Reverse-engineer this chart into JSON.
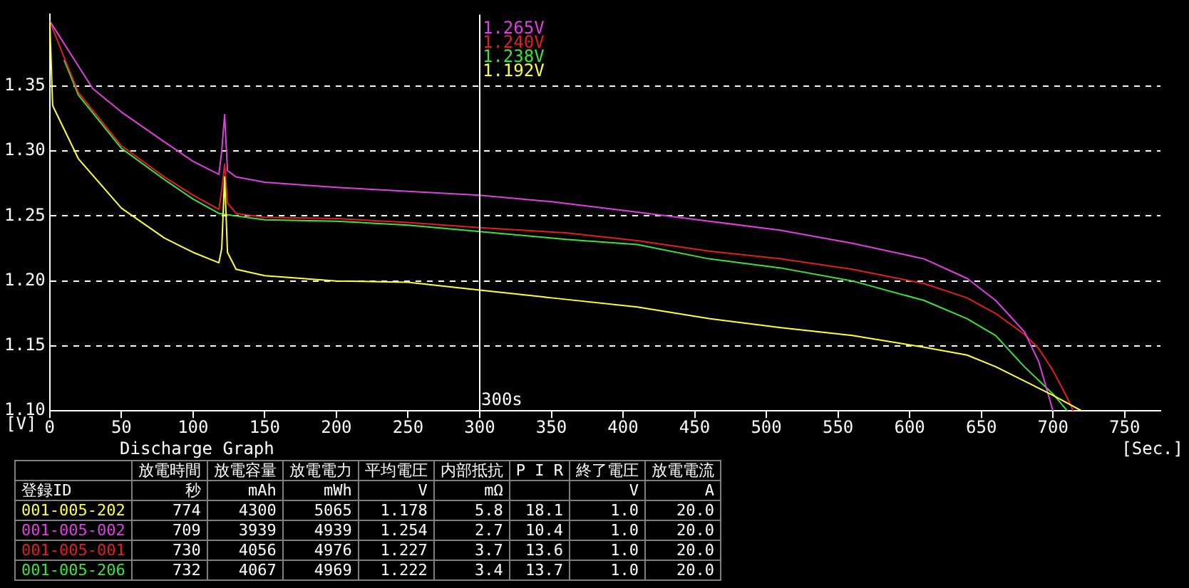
{
  "chart_data": [
    {
      "type": "line",
      "title": "Discharge Graph",
      "xlabel": "[Sec.]",
      "ylabel": "[V]",
      "xlim": [
        0,
        775
      ],
      "ylim": [
        1.1,
        1.405
      ],
      "xticks": [
        0,
        50,
        100,
        150,
        200,
        250,
        300,
        350,
        400,
        450,
        500,
        550,
        600,
        650,
        700,
        750
      ],
      "yticks": [
        {
          "value": 1.1,
          "label": "1.10"
        },
        {
          "value": 1.15,
          "label": "1.15"
        },
        {
          "value": 1.2,
          "label": "1.20"
        },
        {
          "value": 1.25,
          "label": "1.25"
        },
        {
          "value": 1.3,
          "label": "1.30"
        },
        {
          "value": 1.35,
          "label": "1.35"
        }
      ],
      "grid": "y",
      "legend": false,
      "marker": "none",
      "line_style": "solid",
      "ref_lines": [
        {
          "axis": "x",
          "value": 300,
          "label": "300s",
          "color": "#ffffff"
        }
      ],
      "annotations": [
        "1.265V",
        "1.240V",
        "1.238V",
        "1.192V"
      ],
      "series": [
        {
          "name": "001-005-202",
          "color": "#ffff40",
          "x": [
            0,
            2,
            20,
            50,
            80,
            100,
            118,
            120,
            122,
            124,
            130,
            150,
            200,
            250,
            300,
            350,
            410,
            460,
            510,
            560,
            610,
            640,
            660,
            680,
            700,
            720
          ],
          "values": [
            1.4,
            1.335,
            1.294,
            1.256,
            1.233,
            1.222,
            1.214,
            1.225,
            1.28,
            1.222,
            1.209,
            1.204,
            1.2,
            1.199,
            1.193,
            1.187,
            1.18,
            1.171,
            1.164,
            1.158,
            1.149,
            1.143,
            1.134,
            1.123,
            1.112,
            1.1
          ]
        },
        {
          "name": "001-005-002",
          "color": "#e040e0",
          "x": [
            0,
            30,
            50,
            80,
            100,
            118,
            120,
            122,
            124,
            130,
            150,
            200,
            250,
            300,
            350,
            410,
            460,
            510,
            560,
            610,
            640,
            660,
            680,
            690,
            700
          ],
          "values": [
            1.4,
            1.348,
            1.33,
            1.307,
            1.292,
            1.282,
            1.3,
            1.328,
            1.285,
            1.28,
            1.276,
            1.272,
            1.269,
            1.266,
            1.261,
            1.253,
            1.246,
            1.239,
            1.229,
            1.217,
            1.202,
            1.185,
            1.161,
            1.138,
            1.1
          ]
        },
        {
          "name": "001-005-001",
          "color": "#e02020",
          "x": [
            0,
            10,
            20,
            50,
            80,
            100,
            118,
            120,
            122,
            124,
            130,
            150,
            200,
            250,
            300,
            360,
            410,
            460,
            510,
            560,
            610,
            640,
            660,
            680,
            690,
            700,
            710,
            714
          ],
          "values": [
            1.4,
            1.372,
            1.345,
            1.304,
            1.28,
            1.266,
            1.255,
            1.27,
            1.29,
            1.26,
            1.252,
            1.249,
            1.248,
            1.245,
            1.241,
            1.237,
            1.231,
            1.223,
            1.217,
            1.209,
            1.198,
            1.187,
            1.175,
            1.159,
            1.148,
            1.131,
            1.11,
            1.1
          ]
        },
        {
          "name": "001-005-206",
          "color": "#40e040",
          "x": [
            10,
            20,
            50,
            80,
            100,
            118,
            130,
            150,
            200,
            250,
            300,
            360,
            410,
            460,
            510,
            560,
            610,
            640,
            660,
            680,
            700,
            710
          ],
          "values": [
            1.37,
            1.343,
            1.302,
            1.278,
            1.263,
            1.252,
            1.25,
            1.247,
            1.246,
            1.243,
            1.238,
            1.232,
            1.228,
            1.217,
            1.21,
            1.2,
            1.185,
            1.171,
            1.158,
            1.134,
            1.113,
            1.1
          ]
        }
      ]
    },
    {
      "type": "other",
      "categories": [
        "放電時間",
        "放電容量",
        "放電電力",
        "平均電圧",
        "内部抵抗",
        "P I R",
        "終了電圧",
        "放電電流"
      ],
      "y_categories": [
        "登録ID",
        null,
        null,
        null,
        null
      ],
      "cell_labels": [
        [
          "秒",
          "mAh",
          "mWh",
          "V",
          "mΩ",
          null,
          "V",
          "A"
        ],
        [
          "774",
          "4300",
          "5065",
          "1.178",
          "5.8",
          "18.1",
          "1.0",
          "20.0"
        ],
        [
          "709",
          "3939",
          "4939",
          "1.254",
          "2.7",
          "10.4",
          "1.0",
          "20.0"
        ],
        [
          "730",
          "4056",
          "4976",
          "1.227",
          "3.7",
          "13.6",
          "1.0",
          "20.0"
        ],
        [
          "732",
          "4067",
          "4969",
          "1.222",
          "3.4",
          "13.7",
          "1.0",
          "20.0"
        ]
      ]
    }
  ]
}
